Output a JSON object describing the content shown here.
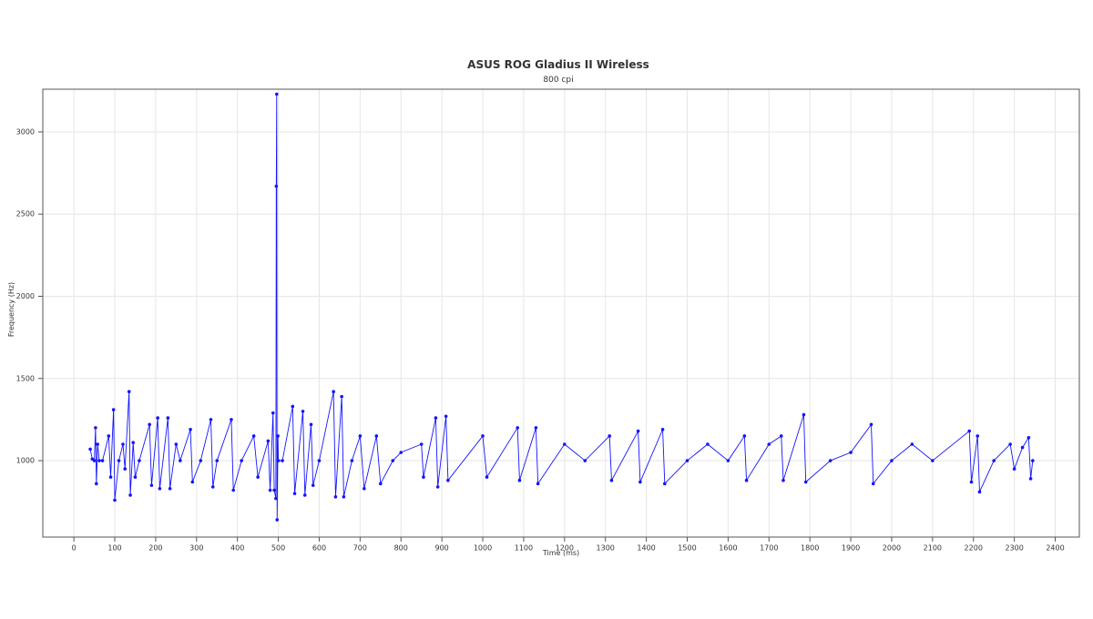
{
  "chart_data": {
    "type": "line",
    "title": "ASUS ROG Gladius II Wireless",
    "subtitle": "800 cpi",
    "x_label": "Time (ms)",
    "y_label": "Frequency (Hz)",
    "xlim": [
      -76,
      2459
    ],
    "ylim": [
      535,
      3260
    ],
    "xticks": [
      0,
      100,
      200,
      300,
      400,
      500,
      600,
      700,
      800,
      900,
      1000,
      1100,
      1200,
      1300,
      1400,
      1500,
      1600,
      1700,
      1800,
      1900,
      2000,
      2100,
      2200,
      2300,
      2400
    ],
    "yticks": [
      1000,
      1500,
      2000,
      2500,
      3000
    ],
    "grid": true,
    "series": [
      {
        "name": "Frequency",
        "color": "#1414ff",
        "x": [
          40,
          45,
          50,
          53,
          55,
          58,
          62,
          70,
          85,
          90,
          97,
          100,
          110,
          120,
          125,
          135,
          138,
          145,
          150,
          160,
          185,
          190,
          205,
          210,
          230,
          235,
          250,
          260,
          285,
          290,
          310,
          335,
          340,
          350,
          385,
          390,
          410,
          440,
          450,
          475,
          480,
          487,
          490,
          494,
          495,
          496,
          497,
          499,
          500,
          510,
          535,
          540,
          560,
          565,
          580,
          585,
          600,
          635,
          640,
          655,
          660,
          680,
          700,
          710,
          740,
          750,
          780,
          800,
          850,
          855,
          885,
          890,
          910,
          915,
          1000,
          1010,
          1085,
          1090,
          1130,
          1135,
          1200,
          1250,
          1310,
          1315,
          1380,
          1385,
          1440,
          1445,
          1500,
          1550,
          1600,
          1640,
          1645,
          1700,
          1730,
          1735,
          1785,
          1790,
          1850,
          1900,
          1950,
          1955,
          2000,
          2050,
          2100,
          2190,
          2195,
          2210,
          2215,
          2250,
          2290,
          2300,
          2320,
          2335,
          2340,
          2345
        ],
        "values": [
          1070,
          1010,
          1000,
          1200,
          860,
          1100,
          1000,
          1000,
          1150,
          900,
          1310,
          760,
          1000,
          1100,
          950,
          1420,
          790,
          1110,
          900,
          1000,
          1220,
          850,
          1260,
          830,
          1260,
          830,
          1100,
          1000,
          1190,
          870,
          1000,
          1250,
          840,
          1000,
          1250,
          820,
          1000,
          1150,
          900,
          1120,
          820,
          1290,
          820,
          770,
          2670,
          3230,
          640,
          1150,
          1000,
          1000,
          1330,
          800,
          1300,
          790,
          1220,
          850,
          1000,
          1420,
          780,
          1390,
          780,
          1000,
          1150,
          830,
          1150,
          860,
          1000,
          1050,
          1100,
          900,
          1260,
          840,
          1270,
          880,
          1150,
          900,
          1200,
          880,
          1200,
          860,
          1100,
          1000,
          1150,
          880,
          1180,
          870,
          1190,
          860,
          1000,
          1100,
          1000,
          1150,
          880,
          1100,
          1150,
          880,
          1280,
          870,
          1000,
          1050,
          1220,
          860,
          1000,
          1100,
          1000,
          1180,
          870,
          1150,
          810,
          1000,
          1100,
          950,
          1080,
          1140,
          890,
          1000
        ]
      }
    ]
  }
}
